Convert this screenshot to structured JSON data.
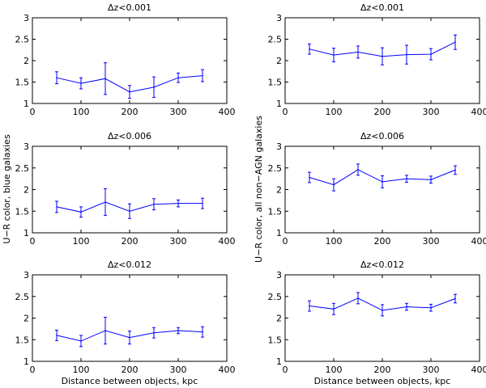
{
  "chart_data": [
    {
      "type": "line",
      "title": "Δz<0.001",
      "xlabel": "",
      "ylabel": "",
      "xlim": [
        0,
        400
      ],
      "ylim": [
        1,
        3
      ],
      "xticks": [
        "0",
        "100",
        "200",
        "300",
        "400"
      ],
      "yticks": [
        "1",
        "1.5",
        "2",
        "2.5",
        "3"
      ],
      "color": "#0000ff",
      "x": [
        50,
        100,
        150,
        200,
        250,
        300,
        350
      ],
      "y": [
        1.6,
        1.47,
        1.58,
        1.27,
        1.38,
        1.6,
        1.65
      ],
      "err": [
        0.14,
        0.13,
        0.37,
        0.15,
        0.24,
        0.11,
        0.14
      ]
    },
    {
      "type": "line",
      "title": "Δz<0.001",
      "xlabel": "",
      "ylabel": "",
      "xlim": [
        0,
        400
      ],
      "ylim": [
        1,
        3
      ],
      "xticks": [
        "0",
        "100",
        "200",
        "300",
        "400"
      ],
      "yticks": [
        "1",
        "1.5",
        "2",
        "2.5",
        "3"
      ],
      "color": "#0000ff",
      "x": [
        50,
        100,
        150,
        200,
        250,
        300,
        350
      ],
      "y": [
        2.27,
        2.13,
        2.2,
        2.1,
        2.14,
        2.15,
        2.43
      ],
      "err": [
        0.12,
        0.16,
        0.14,
        0.2,
        0.22,
        0.13,
        0.17
      ]
    },
    {
      "type": "line",
      "title": "Δz<0.006",
      "xlabel": "",
      "ylabel": "U−R color, blue galaxies",
      "xlim": [
        0,
        400
      ],
      "ylim": [
        1,
        3
      ],
      "xticks": [
        "0",
        "100",
        "200",
        "300",
        "400"
      ],
      "yticks": [
        "1",
        "1.5",
        "2",
        "2.5",
        "3"
      ],
      "color": "#0000ff",
      "x": [
        50,
        100,
        150,
        200,
        250,
        300,
        350
      ],
      "y": [
        1.6,
        1.48,
        1.71,
        1.5,
        1.66,
        1.68,
        1.68
      ],
      "err": [
        0.13,
        0.12,
        0.31,
        0.17,
        0.13,
        0.08,
        0.12
      ]
    },
    {
      "type": "line",
      "title": "Δz<0.006",
      "xlabel": "",
      "ylabel": "U−R color, all non−AGN galaxies",
      "xlim": [
        0,
        400
      ],
      "ylim": [
        1,
        3
      ],
      "xticks": [
        "0",
        "100",
        "200",
        "300",
        "400"
      ],
      "yticks": [
        "1",
        "1.5",
        "2",
        "2.5",
        "3"
      ],
      "color": "#0000ff",
      "x": [
        50,
        100,
        150,
        200,
        250,
        300,
        350
      ],
      "y": [
        2.28,
        2.11,
        2.46,
        2.18,
        2.25,
        2.23,
        2.45
      ],
      "err": [
        0.12,
        0.14,
        0.13,
        0.14,
        0.08,
        0.08,
        0.1
      ]
    },
    {
      "type": "line",
      "title": "Δz<0.012",
      "xlabel": "Distance between objects, kpc",
      "ylabel": "",
      "xlim": [
        0,
        400
      ],
      "ylim": [
        1,
        3
      ],
      "xticks": [
        "0",
        "100",
        "200",
        "300",
        "400"
      ],
      "yticks": [
        "1",
        "1.5",
        "2",
        "2.5",
        "3"
      ],
      "color": "#0000ff",
      "x": [
        50,
        100,
        150,
        200,
        250,
        300,
        350
      ],
      "y": [
        1.6,
        1.47,
        1.71,
        1.55,
        1.66,
        1.71,
        1.68
      ],
      "err": [
        0.12,
        0.13,
        0.31,
        0.15,
        0.12,
        0.07,
        0.12
      ]
    },
    {
      "type": "line",
      "title": "Δz<0.012",
      "xlabel": "Distance between objects, kpc",
      "ylabel": "",
      "xlim": [
        0,
        400
      ],
      "ylim": [
        1,
        3
      ],
      "xticks": [
        "0",
        "100",
        "200",
        "300",
        "400"
      ],
      "yticks": [
        "1",
        "1.5",
        "2",
        "2.5",
        "3"
      ],
      "color": "#0000ff",
      "x": [
        50,
        100,
        150,
        200,
        250,
        300,
        350
      ],
      "y": [
        2.28,
        2.21,
        2.46,
        2.18,
        2.26,
        2.24,
        2.45
      ],
      "err": [
        0.12,
        0.13,
        0.13,
        0.13,
        0.08,
        0.08,
        0.1
      ]
    }
  ]
}
